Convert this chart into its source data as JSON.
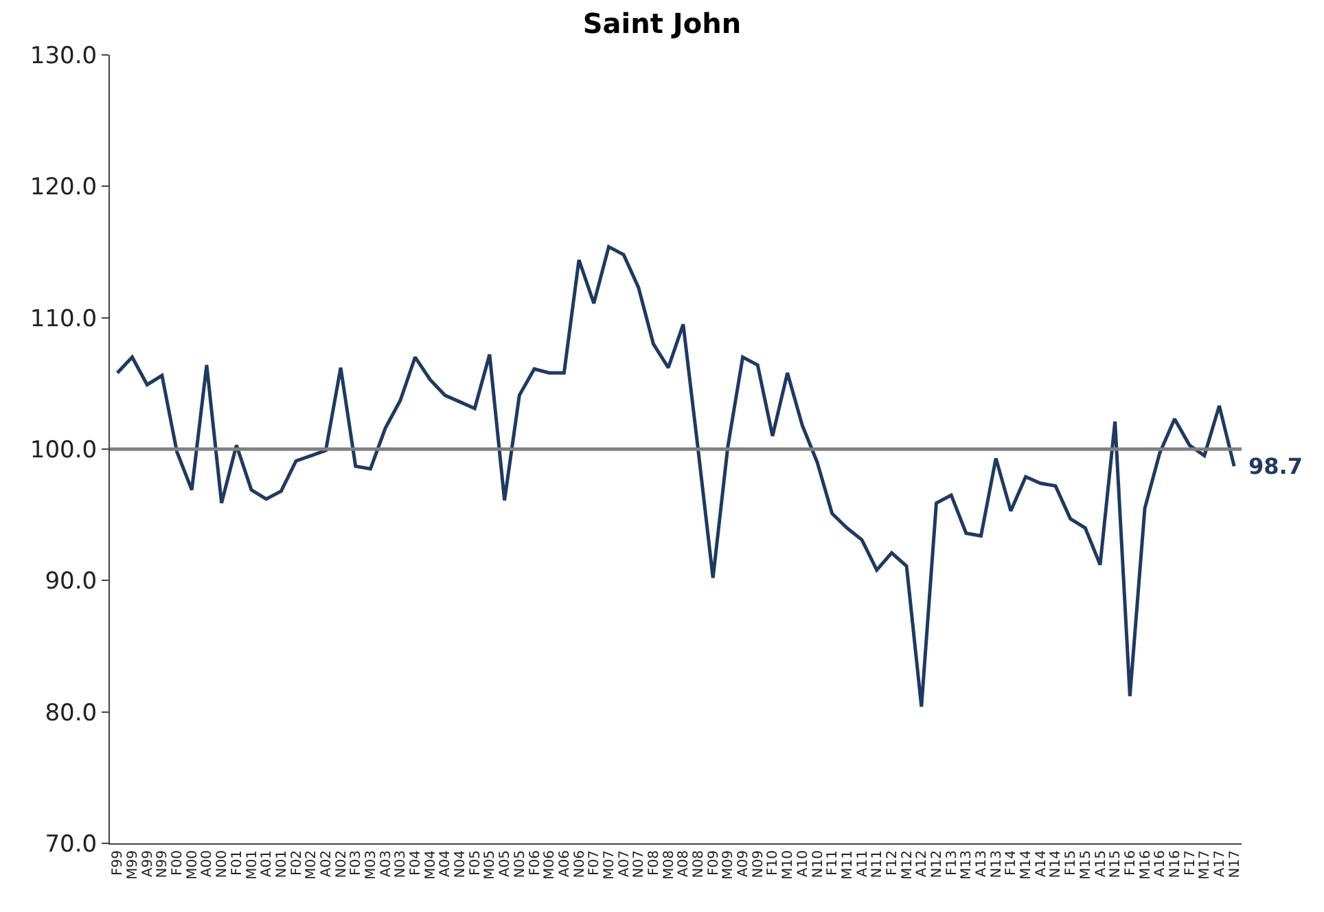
{
  "chart_data": {
    "type": "line",
    "title": "Saint John",
    "categories": [
      "F99",
      "M99",
      "A99",
      "N99",
      "F00",
      "M00",
      "A00",
      "N00",
      "F01",
      "M01",
      "A01",
      "N01",
      "F02",
      "M02",
      "A02",
      "N02",
      "F03",
      "M03",
      "A03",
      "N03",
      "F04",
      "M04",
      "A04",
      "N04",
      "F05",
      "M05",
      "A05",
      "N05",
      "F06",
      "M06",
      "A06",
      "N06",
      "F07",
      "M07",
      "A07",
      "N07",
      "F08",
      "M08",
      "A08",
      "N08",
      "F09",
      "M09",
      "A09",
      "N09",
      "F10",
      "M10",
      "A10",
      "N10",
      "F11",
      "M11",
      "A11",
      "N11",
      "F12",
      "M12",
      "A12",
      "N12",
      "F13",
      "M13",
      "A13",
      "N13",
      "F14",
      "M14",
      "A14",
      "N14",
      "F15",
      "M15",
      "A15",
      "N15",
      "F16",
      "M16",
      "A16",
      "N16",
      "F17",
      "M17",
      "A17",
      "N17"
    ],
    "series": [
      {
        "color": "#1f3a60",
        "values": [
          105.8,
          107.0,
          104.9,
          105.6,
          99.8,
          96.9,
          106.4,
          95.9,
          100.3,
          96.9,
          96.2,
          96.8,
          99.1,
          99.5,
          99.9,
          106.2,
          98.7,
          98.5,
          101.6,
          103.7,
          107.0,
          105.3,
          104.1,
          103.6,
          103.1,
          107.2,
          96.1,
          104.1,
          106.1,
          105.8,
          105.8,
          114.4,
          111.1,
          115.4,
          114.8,
          112.3,
          108.0,
          106.2,
          109.5,
          100.0,
          90.2,
          100.2,
          107.0,
          106.4,
          101.0,
          105.8,
          101.8,
          99.0,
          95.1,
          94.0,
          93.1,
          90.8,
          92.1,
          91.1,
          80.4,
          95.9,
          96.5,
          93.6,
          93.4,
          99.3,
          95.3,
          97.9,
          97.4,
          97.2,
          94.7,
          94.0,
          91.2,
          102.1,
          81.2,
          95.5,
          99.7,
          102.3,
          100.3,
          99.5,
          103.3,
          98.7
        ]
      }
    ],
    "ylim": [
      70,
      130
    ],
    "yticks": [
      {
        "value": 70,
        "label": "70.0"
      },
      {
        "value": 80,
        "label": "80.0"
      },
      {
        "value": 90,
        "label": "90.0"
      },
      {
        "value": 100,
        "label": "100.0"
      },
      {
        "value": 110,
        "label": "110.0"
      },
      {
        "value": 120,
        "label": "120.0"
      },
      {
        "value": 130,
        "label": "130.0"
      }
    ],
    "ref_lines": [
      {
        "axis": "y",
        "value": 100,
        "label": null,
        "color": "#7f7f7f"
      }
    ],
    "annotations": [
      "98.7"
    ],
    "marker": "none",
    "line_style": "solid"
  }
}
